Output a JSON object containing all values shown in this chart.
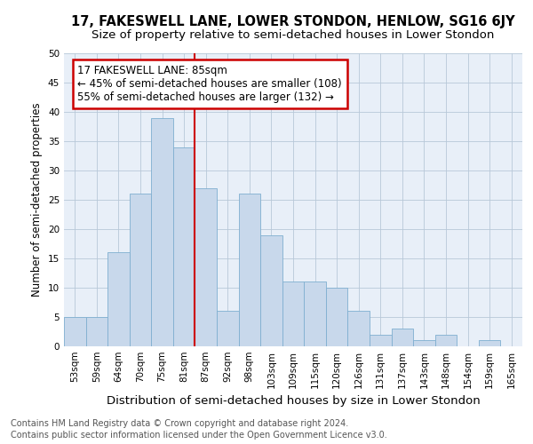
{
  "title": "17, FAKESWELL LANE, LOWER STONDON, HENLOW, SG16 6JY",
  "subtitle": "Size of property relative to semi-detached houses in Lower Stondon",
  "xlabel": "Distribution of semi-detached houses by size in Lower Stondon",
  "ylabel": "Number of semi-detached properties",
  "footnote1": "Contains HM Land Registry data © Crown copyright and database right 2024.",
  "footnote2": "Contains public sector information licensed under the Open Government Licence v3.0.",
  "categories": [
    "53sqm",
    "59sqm",
    "64sqm",
    "70sqm",
    "75sqm",
    "81sqm",
    "87sqm",
    "92sqm",
    "98sqm",
    "103sqm",
    "109sqm",
    "115sqm",
    "120sqm",
    "126sqm",
    "131sqm",
    "137sqm",
    "143sqm",
    "148sqm",
    "154sqm",
    "159sqm",
    "165sqm"
  ],
  "values": [
    5,
    5,
    16,
    26,
    39,
    34,
    27,
    6,
    26,
    19,
    11,
    11,
    10,
    6,
    2,
    3,
    1,
    2,
    0,
    1,
    0
  ],
  "bar_color": "#c8d8eb",
  "bar_edge_color": "#7fafd0",
  "grid_color": "#b8c8d8",
  "background_color": "#e8eff8",
  "annotation_text": "17 FAKESWELL LANE: 85sqm\n← 45% of semi-detached houses are smaller (108)\n55% of semi-detached houses are larger (132) →",
  "vline_x": 5.5,
  "vline_color": "#cc0000",
  "annotation_box_facecolor": "#ffffff",
  "annotation_box_edgecolor": "#cc0000",
  "ylim": [
    0,
    50
  ],
  "yticks": [
    0,
    5,
    10,
    15,
    20,
    25,
    30,
    35,
    40,
    45,
    50
  ],
  "title_fontsize": 10.5,
  "subtitle_fontsize": 9.5,
  "xlabel_fontsize": 9.5,
  "ylabel_fontsize": 8.5,
  "tick_fontsize": 7.5,
  "annotation_fontsize": 8.5,
  "footnote_fontsize": 7.0
}
